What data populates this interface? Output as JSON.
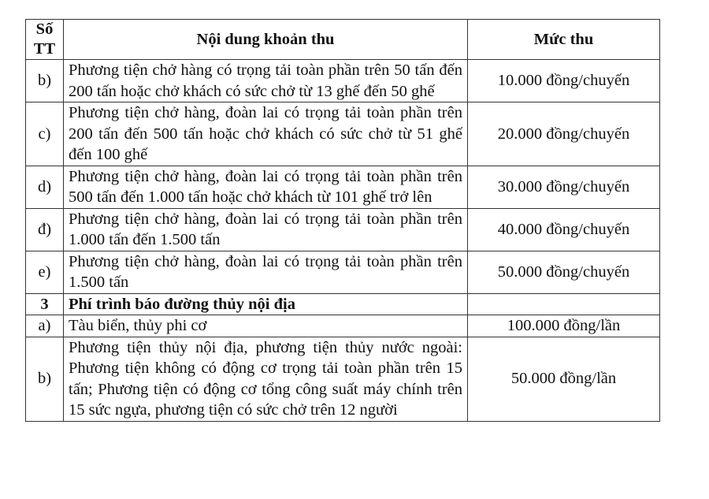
{
  "table": {
    "headers": [
      "Số TT",
      "Nội dung khoản thu",
      "Mức thu"
    ],
    "header_no_lines": [
      "Số",
      "TT"
    ],
    "rows": [
      {
        "no": "b)",
        "content": "Phương tiện chở hàng có trọng tải toàn phần trên 50 tấn đến 200 tấn hoặc chở khách có sức chở từ 13 ghế đến 50 ghế",
        "fee": "10.000 đồng/chuyến"
      },
      {
        "no": "c)",
        "content": "Phương tiện chở hàng, đoàn lai có trọng tải toàn phần trên 200 tấn đến 500 tấn hoặc chở khách có sức chở từ 51 ghế đến 100 ghế",
        "fee": "20.000 đồng/chuyến"
      },
      {
        "no": "d)",
        "content": "Phương tiện chở hàng, đoàn lai có trọng tải toàn phần trên 500 tấn đến 1.000 tấn hoặc chở khách từ 101 ghế trở lên",
        "fee": "30.000 đồng/chuyến"
      },
      {
        "no": "đ)",
        "content": "Phương tiện chở hàng, đoàn lai có trọng tải toàn phần trên 1.000 tấn đến 1.500 tấn",
        "fee": "40.000 đồng/chuyến"
      },
      {
        "no": "e)",
        "content": "Phương tiện chở hàng, đoàn lai có trọng tải toàn phần trên 1.500 tấn",
        "fee": "50.000 đồng/chuyến"
      },
      {
        "no": "3",
        "content": "Phí trình báo đường thủy nội địa",
        "fee": "",
        "section": true
      },
      {
        "no": "a)",
        "content": "Tàu biển, thủy phi cơ",
        "fee": "100.000 đồng/lần"
      },
      {
        "no": "b)",
        "content": "Phương tiện thủy nội địa, phương tiện thủy nước ngoài: Phương tiện không có động cơ trọng tải toàn phần trên 15 tấn; Phương tiện có động cơ tổng công suất máy chính trên 15 sức ngựa, phương tiện có sức chở trên 12 người",
        "fee": "50.000 đồng/lần"
      }
    ]
  }
}
